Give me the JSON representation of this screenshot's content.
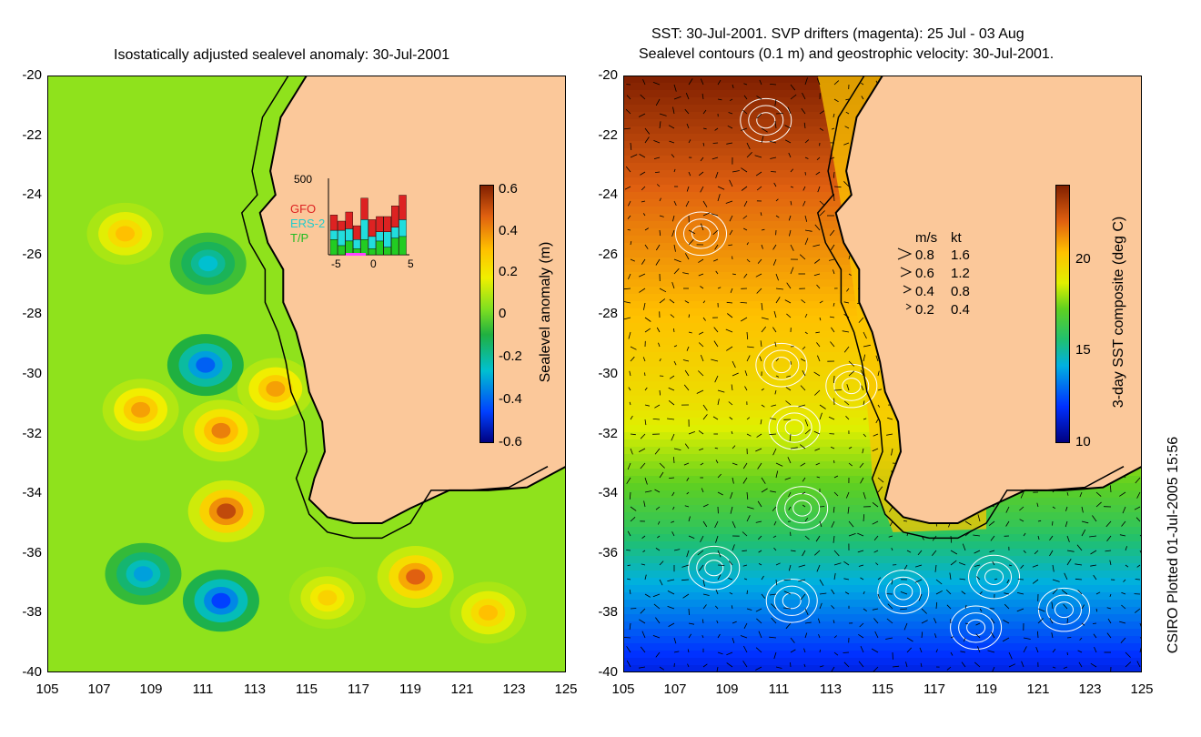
{
  "left_panel": {
    "title": "Isostatically adjusted sealevel anomaly: 30-Jul-2001",
    "colorbar_label": "Sealevel anomaly (m)",
    "colorbar_ticks": [
      "0.6",
      "0.4",
      "0.2",
      "0",
      "-0.2",
      "-0.4",
      "-0.6"
    ],
    "inset": {
      "ymax_label": "500",
      "legend": [
        {
          "name": "GFO",
          "color": "#dd2222"
        },
        {
          "name": "ERS-2",
          "color": "#22dddd"
        },
        {
          "name": "T/P",
          "color": "#22cc22"
        }
      ],
      "x_ticks": [
        "-5",
        "0",
        "5"
      ]
    }
  },
  "right_panel": {
    "title_line1": "SST: 30-Jul-2001. SVP drifters (magenta): 25 Jul - 03 Aug",
    "title_line2": "Sealevel contours (0.1 m) and geostrophic velocity: 30-Jul-2001.",
    "colorbar_label": "3-day SST composite (deg C)",
    "colorbar_ticks": [
      "20",
      "15",
      "10"
    ],
    "velocity_key": {
      "header_ms": "m/s",
      "header_kt": "kt",
      "rows": [
        {
          "ms": "0.8",
          "kt": "1.6"
        },
        {
          "ms": "0.6",
          "kt": "1.2"
        },
        {
          "ms": "0.4",
          "kt": "0.8"
        },
        {
          "ms": "0.2",
          "kt": "0.4"
        }
      ]
    }
  },
  "credit": "CSIRO Plotted 01-Jul-2005 15:56",
  "colors": {
    "land": "#fbc89a",
    "coast": "#000000"
  },
  "chart_data": [
    {
      "type": "heatmap",
      "title": "Isostatically adjusted sealevel anomaly: 30-Jul-2001",
      "xlabel": "",
      "ylabel": "",
      "xlim": [
        105,
        125
      ],
      "ylim": [
        -40,
        -20
      ],
      "x_ticks": [
        105,
        107,
        109,
        111,
        113,
        115,
        117,
        119,
        121,
        123,
        125
      ],
      "y_ticks": [
        -20,
        -22,
        -24,
        -26,
        -28,
        -30,
        -32,
        -34,
        -36,
        -38,
        -40
      ],
      "colorbar": {
        "label": "Sealevel anomaly (m)",
        "range": [
          -0.6,
          0.6
        ]
      },
      "features": [
        {
          "lon": 108,
          "lat": -25.3,
          "value": 0.3
        },
        {
          "lon": 111.2,
          "lat": -26.3,
          "value": -0.25
        },
        {
          "lon": 111.1,
          "lat": -29.7,
          "value": -0.4
        },
        {
          "lon": 108.6,
          "lat": -31.2,
          "value": 0.35
        },
        {
          "lon": 111.7,
          "lat": -31.9,
          "value": 0.4
        },
        {
          "lon": 113.8,
          "lat": -30.5,
          "value": 0.35
        },
        {
          "lon": 111.9,
          "lat": -34.6,
          "value": 0.5
        },
        {
          "lon": 108.7,
          "lat": -36.7,
          "value": -0.3
        },
        {
          "lon": 111.7,
          "lat": -37.6,
          "value": -0.45
        },
        {
          "lon": 119.2,
          "lat": -36.8,
          "value": 0.45
        },
        {
          "lon": 122.0,
          "lat": -38.0,
          "value": 0.3
        },
        {
          "lon": 115.8,
          "lat": -37.5,
          "value": 0.25
        }
      ],
      "inset_bars": {
        "x_range": [
          -5,
          5
        ],
        "y_max": 500,
        "series": [
          {
            "name": "T/P",
            "values": [
              100,
              60,
              90,
              40,
              100,
              40,
              90,
              50,
              110,
              120
            ]
          },
          {
            "name": "ERS-2",
            "values": [
              60,
              100,
              80,
              60,
              130,
              80,
              60,
              100,
              70,
              110
            ]
          },
          {
            "name": "GFO",
            "values": [
              100,
              60,
              110,
              90,
              140,
              110,
              100,
              100,
              140,
              160
            ]
          }
        ]
      }
    },
    {
      "type": "heatmap",
      "title": "SST: 30-Jul-2001. SVP drifters (magenta): 25 Jul - 03 Aug / Sealevel contours (0.1 m) and geostrophic velocity: 30-Jul-2001.",
      "xlabel": "",
      "ylabel": "",
      "xlim": [
        105,
        125
      ],
      "ylim": [
        -40,
        -20
      ],
      "x_ticks": [
        105,
        107,
        109,
        111,
        113,
        115,
        117,
        119,
        121,
        123,
        125
      ],
      "y_ticks": [
        -20,
        -22,
        -24,
        -26,
        -28,
        -30,
        -32,
        -34,
        -36,
        -38,
        -40
      ],
      "colorbar": {
        "label": "3-day SST composite (deg C)",
        "range": [
          10,
          23.5
        ],
        "ticks": [
          10,
          15,
          20
        ]
      },
      "sst_by_lat": [
        {
          "lat": -20,
          "sst": 23.5
        },
        {
          "lat": -24,
          "sst": 21.5
        },
        {
          "lat": -28,
          "sst": 20
        },
        {
          "lat": -31,
          "sst": 19
        },
        {
          "lat": -33,
          "sst": 17.5
        },
        {
          "lat": -35,
          "sst": 16
        },
        {
          "lat": -37,
          "sst": 14
        },
        {
          "lat": -40,
          "sst": 11.5
        }
      ],
      "velocity_key": [
        {
          "ms": 0.8,
          "kt": 1.6
        },
        {
          "ms": 0.6,
          "kt": 1.2
        },
        {
          "ms": 0.4,
          "kt": 0.8
        },
        {
          "ms": 0.2,
          "kt": 0.4
        }
      ]
    }
  ]
}
